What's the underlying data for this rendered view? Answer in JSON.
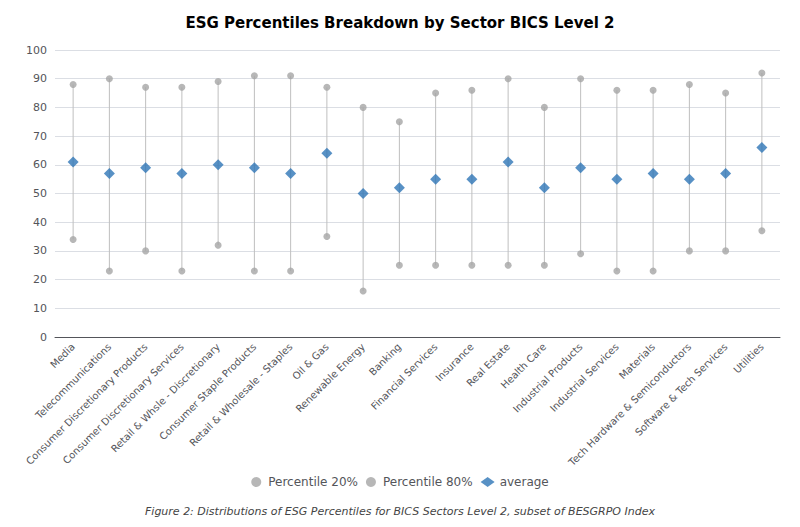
{
  "chart_data": {
    "type": "scatter",
    "title": "ESG Percentiles Breakdown by Sector BICS Level 2",
    "caption": "Figure 2: Distributions of ESG Percentiles for BICS Sectors Level 2, subset of BESGRPO Index",
    "categories": [
      "Media",
      "Telecommunications",
      "Consumer Discretionary Products",
      "Consumer Discretionary Services",
      "Retail & Whsle - Discretionary",
      "Consumer Staple Products",
      "Retail & Wholesale - Staples",
      "Oil & Gas",
      "Renewable Energy",
      "Banking",
      "Financial Services",
      "Insurance",
      "Real Estate",
      "Health Care",
      "Industrial Products",
      "Industrial Services",
      "Materials",
      "Tech Hardware & Semiconductors",
      "Software & Tech Services",
      "Utilities"
    ],
    "series": [
      {
        "name": "Percentile 20%",
        "color": "#a5a5a5",
        "marker": "circle",
        "values": [
          34,
          23,
          30,
          23,
          32,
          23,
          23,
          35,
          16,
          25,
          25,
          25,
          25,
          25,
          29,
          23,
          23,
          30,
          30,
          37
        ]
      },
      {
        "name": "Percentile 80%",
        "color": "#a5a5a5",
        "marker": "circle",
        "values": [
          88,
          90,
          87,
          87,
          89,
          91,
          91,
          87,
          80,
          75,
          85,
          86,
          90,
          80,
          90,
          86,
          86,
          88,
          85,
          92
        ]
      },
      {
        "name": "average",
        "color": "#2e75b6",
        "marker": "diamond",
        "values": [
          61,
          57,
          59,
          57,
          60,
          59,
          57,
          64,
          50,
          52,
          55,
          55,
          61,
          52,
          59,
          55,
          57,
          55,
          57,
          66
        ]
      }
    ],
    "color": "#bfbfbf",
    "ylim": [
      0,
      100
    ],
    "yticks": [
      0,
      10,
      20,
      30,
      40,
      50,
      60,
      70,
      80,
      90,
      100
    ],
    "grid": true,
    "legend": "bottom"
  }
}
